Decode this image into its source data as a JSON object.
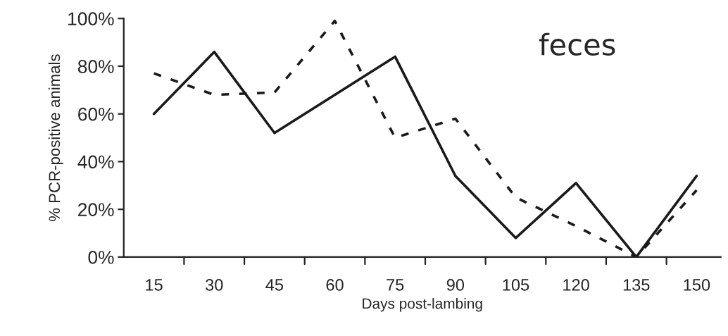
{
  "chart_data": {
    "type": "line",
    "title": "feces",
    "xlabel": "Days post-lambing",
    "ylabel": "% PCR-positive animals",
    "categories": [
      "15",
      "30",
      "45",
      "60",
      "75",
      "90",
      "105",
      "120",
      "135",
      "150"
    ],
    "series": [
      {
        "color": "#1a1a1a",
        "line_style": "solid",
        "values": [
          60,
          86,
          52,
          null,
          84,
          34,
          8,
          31,
          0,
          34
        ]
      },
      {
        "color": "#1a1a1a",
        "line_style": "dashed",
        "values": [
          77,
          68,
          69,
          99,
          50,
          58,
          25,
          13,
          0,
          28
        ]
      }
    ],
    "ylim": [
      0,
      100
    ],
    "yticks": [
      {
        "value": 0,
        "label": "0%"
      },
      {
        "value": 20,
        "label": "20%"
      },
      {
        "value": 40,
        "label": "40%"
      },
      {
        "value": 60,
        "label": "60%"
      },
      {
        "value": 80,
        "label": "80%"
      },
      {
        "value": 100,
        "label": "100%"
      }
    ],
    "grid": false,
    "legend": false,
    "marker": "none"
  }
}
